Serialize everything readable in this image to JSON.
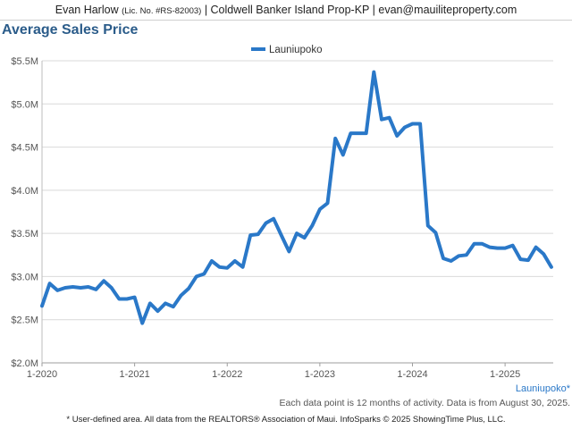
{
  "header": {
    "agent_name": "Evan Harlow",
    "license": "(Lic. No. #RS-82003)",
    "rest": "| Coldwell Banker Island Prop-KP | evan@mauiliteproperty.com"
  },
  "colors": {
    "series": "#2a78c8",
    "title": "#2b5c8a",
    "grid": "#d9d9d9"
  },
  "chart_data": {
    "type": "line",
    "title": "Average Sales Price",
    "xlabel": "",
    "ylabel": "",
    "ylim": [
      2000000,
      5500000
    ],
    "xlim": [
      2020.0,
      2025.52
    ],
    "y_ticks": [
      2000000,
      2500000,
      3000000,
      3500000,
      4000000,
      4500000,
      5000000,
      5500000
    ],
    "y_tick_labels": [
      "$2.0M",
      "$2.5M",
      "$3.0M",
      "$3.5M",
      "$4.0M",
      "$4.5M",
      "$5.0M",
      "$5.5M"
    ],
    "x_ticks": [
      2020,
      2021,
      2022,
      2023,
      2024,
      2025
    ],
    "x_tick_labels": [
      "1-2020",
      "1-2021",
      "1-2022",
      "1-2023",
      "1-2024",
      "1-2025"
    ],
    "grid": "horizontal",
    "legend_position": "top-center",
    "series": [
      {
        "name": "Launiupoko",
        "x": [
          2020.0,
          2020.083,
          2020.167,
          2020.25,
          2020.333,
          2020.417,
          2020.5,
          2020.583,
          2020.667,
          2020.75,
          2020.833,
          2020.917,
          2021.0,
          2021.083,
          2021.167,
          2021.25,
          2021.333,
          2021.417,
          2021.5,
          2021.583,
          2021.667,
          2021.75,
          2021.833,
          2021.917,
          2022.0,
          2022.083,
          2022.167,
          2022.25,
          2022.333,
          2022.417,
          2022.5,
          2022.583,
          2022.667,
          2022.75,
          2022.833,
          2022.917,
          2023.0,
          2023.083,
          2023.167,
          2023.25,
          2023.333,
          2023.417,
          2023.5,
          2023.583,
          2023.667,
          2023.75,
          2023.833,
          2023.917,
          2024.0,
          2024.083,
          2024.167,
          2024.25,
          2024.333,
          2024.417,
          2024.5,
          2024.583,
          2024.667,
          2024.75,
          2024.833,
          2024.917,
          2025.0,
          2025.083,
          2025.167,
          2025.25,
          2025.333,
          2025.417,
          2025.5
        ],
        "values": [
          2660000,
          2920000,
          2840000,
          2870000,
          2880000,
          2870000,
          2880000,
          2850000,
          2950000,
          2870000,
          2740000,
          2740000,
          2760000,
          2460000,
          2690000,
          2600000,
          2690000,
          2650000,
          2780000,
          2860000,
          3000000,
          3030000,
          3180000,
          3110000,
          3100000,
          3180000,
          3110000,
          3480000,
          3490000,
          3620000,
          3670000,
          3480000,
          3290000,
          3500000,
          3450000,
          3590000,
          3780000,
          3850000,
          4600000,
          4410000,
          4660000,
          4660000,
          4660000,
          5370000,
          4820000,
          4840000,
          4630000,
          4730000,
          4770000,
          4770000,
          3590000,
          3510000,
          3210000,
          3180000,
          3240000,
          3250000,
          3380000,
          3380000,
          3340000,
          3330000,
          3330000,
          3360000,
          3200000,
          3190000,
          3340000,
          3260000,
          3110000
        ]
      }
    ]
  },
  "area_label": "Launiupoko*",
  "footnote": "Each data point is 12 months of activity. Data is from August 30, 2025.",
  "footer_note": "* User-defined area. All data from the REALTORS® Association of Maui. InfoSparks © 2025 ShowingTime Plus, LLC."
}
